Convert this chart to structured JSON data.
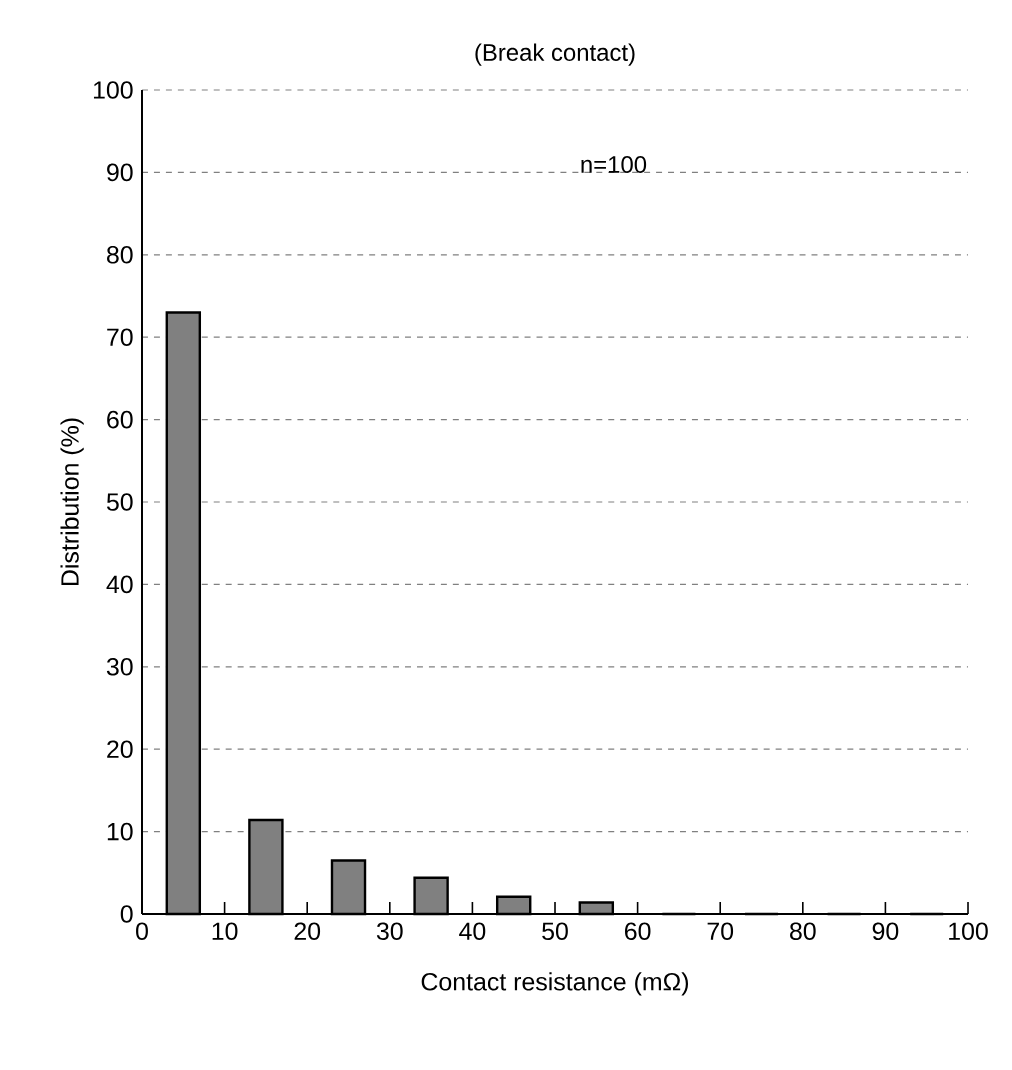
{
  "chart_data": {
    "type": "histogram",
    "title": "(Break contact)",
    "xlabel": "Contact resistance (mΩ)",
    "ylabel": "Distribution (%)",
    "bins": [
      0,
      10,
      20,
      30,
      40,
      50,
      60,
      70,
      80,
      90,
      100
    ],
    "values": [
      73,
      11.4,
      6.5,
      4.4,
      2.1,
      1.4,
      0,
      0,
      0,
      0
    ],
    "color": "#808080",
    "xlim": [
      0,
      100
    ],
    "ylim": [
      0,
      100
    ],
    "xticks": [
      0,
      10,
      20,
      30,
      40,
      50,
      60,
      70,
      80,
      90,
      100
    ],
    "yticks": [
      0,
      10,
      20,
      30,
      40,
      50,
      60,
      70,
      80,
      90,
      100
    ],
    "grid": "y",
    "annotations": [
      "n=100"
    ]
  }
}
